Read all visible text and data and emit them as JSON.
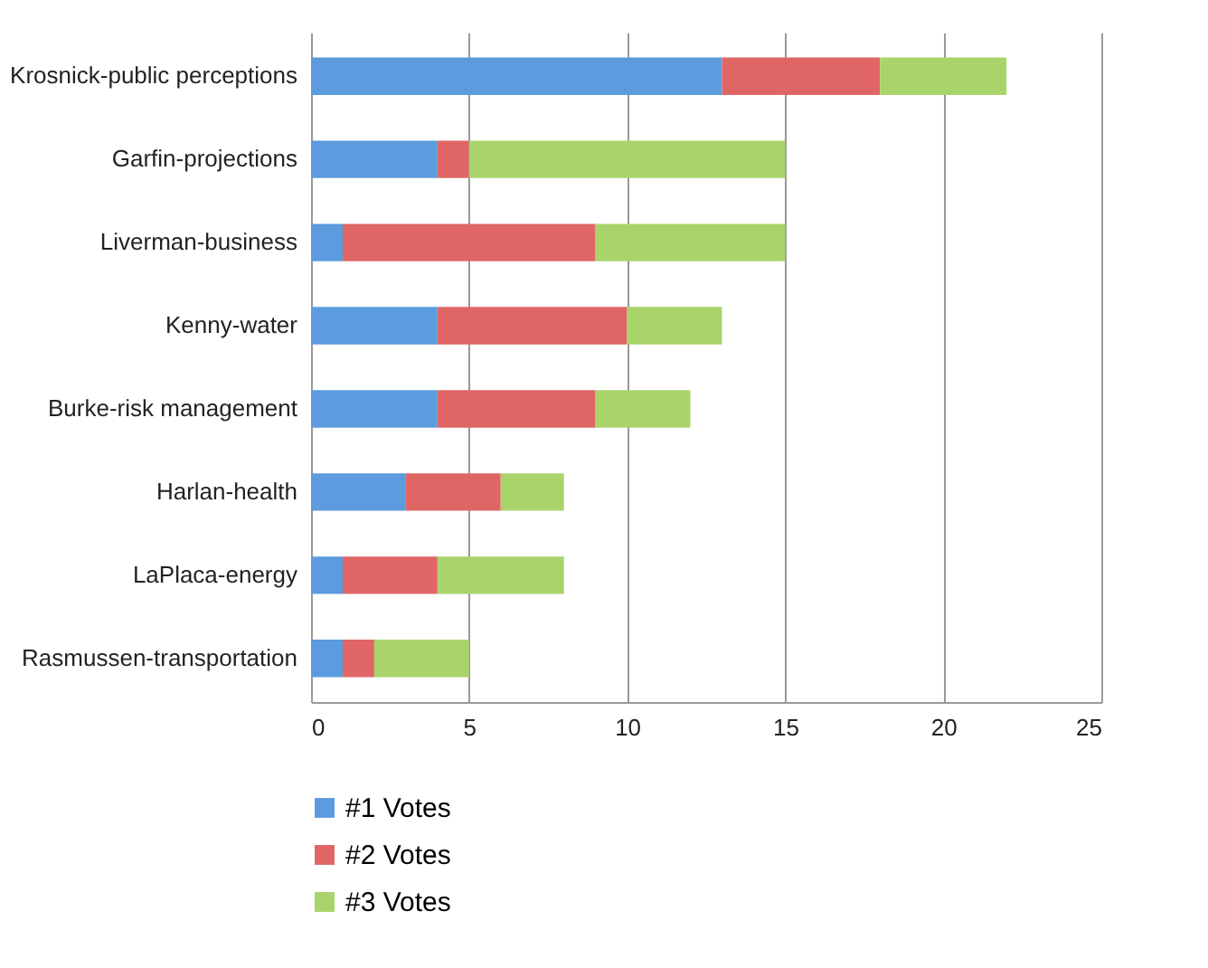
{
  "chart_data": {
    "type": "bar",
    "orientation": "horizontal",
    "stacked": true,
    "categories": [
      "Krosnick-public perceptions",
      "Garfin-projections",
      "Liverman-business",
      "Kenny-water",
      "Burke-risk management",
      "Harlan-health",
      "LaPlaca-energy",
      "Rasmussen-transportation"
    ],
    "series": [
      {
        "name": "#1 Votes",
        "color": "#5b9bde",
        "values": [
          13,
          4,
          1,
          4,
          4,
          3,
          1,
          1
        ]
      },
      {
        "name": "#2 Votes",
        "color": "#e06666",
        "values": [
          5,
          1,
          8,
          6,
          5,
          3,
          3,
          1
        ]
      },
      {
        "name": "#3 Votes",
        "color": "#a9d46b",
        "values": [
          4,
          10,
          6,
          3,
          3,
          2,
          4,
          3
        ]
      }
    ],
    "xlim": [
      0,
      25
    ],
    "xticks": [
      0,
      5,
      10,
      15,
      20,
      25
    ],
    "grid": "x",
    "legend": "bottom"
  }
}
